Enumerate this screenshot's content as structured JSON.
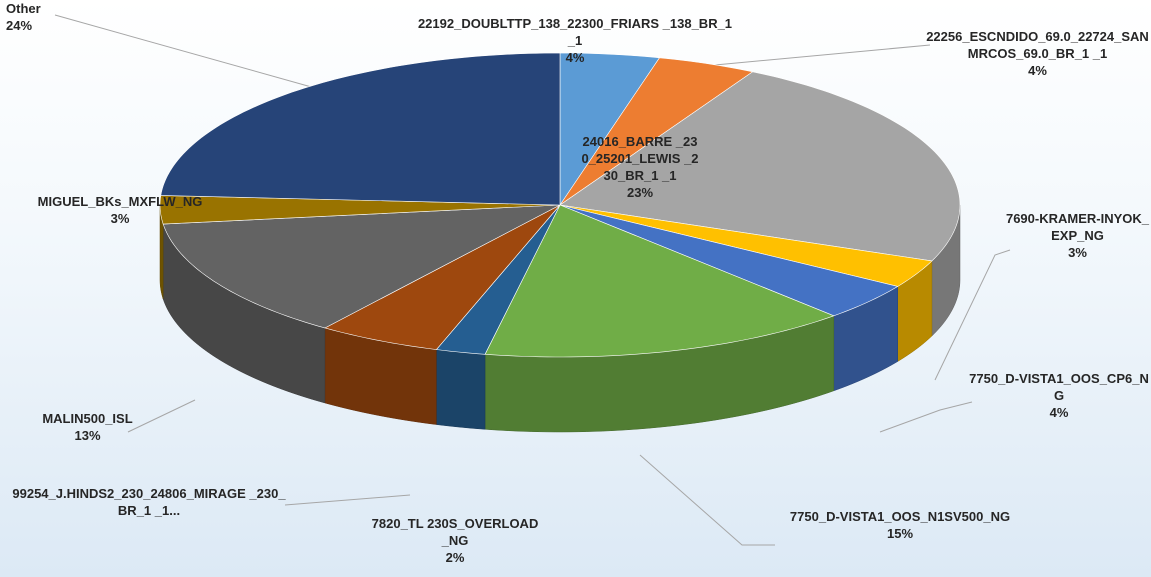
{
  "chart_data": {
    "type": "pie3d",
    "categories": [
      "22192_DOUBLTTP_138_22300_FRIARS _138_BR_1 _1",
      "22256_ESCNDIDO_69.0_22724_SANMRCOS_69.0_BR_1 _1",
      "24016_BARRE _230_25201_LEWIS _230_BR_1 _1",
      "7690-KRAMER-INYOK_EXP_NG",
      "7750_D-VISTA1_OOS_CP6_NG",
      "7750_D-VISTA1_OOS_N1SV500_NG",
      "7820_TL 230S_OVERLOAD_NG",
      "99254_J.HINDS2_230_24806_MIRAGE _230_BR_1 _1...",
      "MALIN500_ISL",
      "MIGUEL_BKs_MXFLW_NG",
      "Other"
    ],
    "values": [
      4,
      4,
      23,
      3,
      4,
      15,
      2,
      5,
      13,
      3,
      24
    ],
    "value_labels": [
      "4%",
      "4%",
      "23%",
      "3%",
      "4%",
      "15%",
      "2%",
      null,
      "13%",
      "3%",
      "24%"
    ],
    "colors": [
      "#5b9bd5",
      "#ed7d31",
      "#a5a5a5",
      "#ffc000",
      "#4472c4",
      "#70ad47",
      "#255e91",
      "#9e480e",
      "#636363",
      "#997300",
      "#264478"
    ]
  }
}
